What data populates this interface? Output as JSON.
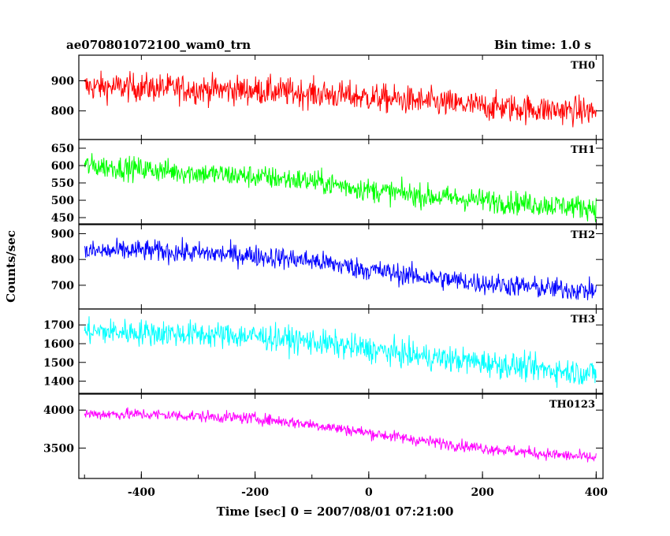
{
  "header": {
    "title": "ae070801072100_wam0_trn",
    "bin_time": "Bin time: 1.0 s"
  },
  "chart_data": {
    "type": "line",
    "xlabel": "Time [sec] 0 = 2007/08/01 07:21:00",
    "ylabel": "Counts/sec",
    "xlim": [
      -510,
      412
    ],
    "xticks": [
      "-400",
      "-200",
      "0",
      "200",
      "400"
    ],
    "xtick_values": [
      -400,
      -200,
      0,
      200,
      400
    ],
    "x_range": [
      -500,
      400
    ],
    "panels": [
      {
        "name": "TH0",
        "color": "#ff0000",
        "ylim": [
          705,
          985
        ],
        "yticks": [
          "900",
          "800"
        ],
        "ytick_values": [
          900,
          800
        ],
        "trend": [
          [
            -500,
            880
          ],
          [
            -400,
            878
          ],
          [
            -300,
            872
          ],
          [
            -200,
            868
          ],
          [
            -100,
            858
          ],
          [
            0,
            845
          ],
          [
            100,
            830
          ],
          [
            200,
            815
          ],
          [
            300,
            805
          ],
          [
            400,
            798
          ]
        ],
        "noise": 34
      },
      {
        "name": "TH1",
        "color": "#00ff00",
        "ylim": [
          432,
          675
        ],
        "yticks": [
          "650",
          "600",
          "550",
          "500",
          "450"
        ],
        "ytick_values": [
          650,
          600,
          550,
          500,
          450
        ],
        "trend": [
          [
            -500,
            600
          ],
          [
            -400,
            590
          ],
          [
            -300,
            578
          ],
          [
            -200,
            568
          ],
          [
            -100,
            555
          ],
          [
            0,
            530
          ],
          [
            100,
            512
          ],
          [
            200,
            500
          ],
          [
            300,
            488
          ],
          [
            400,
            478
          ]
        ],
        "noise": 24
      },
      {
        "name": "TH2",
        "color": "#0000ff",
        "ylim": [
          608,
          935
        ],
        "yticks": [
          "900",
          "800",
          "700"
        ],
        "ytick_values": [
          900,
          800,
          700
        ],
        "trend": [
          [
            -500,
            830
          ],
          [
            -400,
            835
          ],
          [
            -300,
            825
          ],
          [
            -200,
            815
          ],
          [
            -100,
            795
          ],
          [
            0,
            760
          ],
          [
            100,
            730
          ],
          [
            200,
            708
          ],
          [
            300,
            690
          ],
          [
            400,
            678
          ]
        ],
        "noise": 30
      },
      {
        "name": "TH3",
        "color": "#00ffff",
        "ylim": [
          1335,
          1785
        ],
        "yticks": [
          "1700",
          "1600",
          "1500",
          "1400"
        ],
        "ytick_values": [
          1700,
          1600,
          1500,
          1400
        ],
        "trend": [
          [
            -500,
            1665
          ],
          [
            -400,
            1660
          ],
          [
            -300,
            1650
          ],
          [
            -200,
            1640
          ],
          [
            -100,
            1610
          ],
          [
            0,
            1570
          ],
          [
            100,
            1530
          ],
          [
            200,
            1500
          ],
          [
            300,
            1465
          ],
          [
            400,
            1440
          ]
        ],
        "noise": 50
      },
      {
        "name": "TH0123",
        "color": "#ff00ff",
        "ylim": [
          3100,
          4210
        ],
        "yticks": [
          "4000",
          "3500"
        ],
        "ytick_values": [
          4000,
          3500
        ],
        "trend": [
          [
            -500,
            3950
          ],
          [
            -400,
            3945
          ],
          [
            -300,
            3920
          ],
          [
            -200,
            3890
          ],
          [
            -100,
            3810
          ],
          [
            0,
            3700
          ],
          [
            100,
            3590
          ],
          [
            200,
            3500
          ],
          [
            300,
            3430
          ],
          [
            400,
            3370
          ]
        ],
        "noise": 55
      }
    ]
  }
}
